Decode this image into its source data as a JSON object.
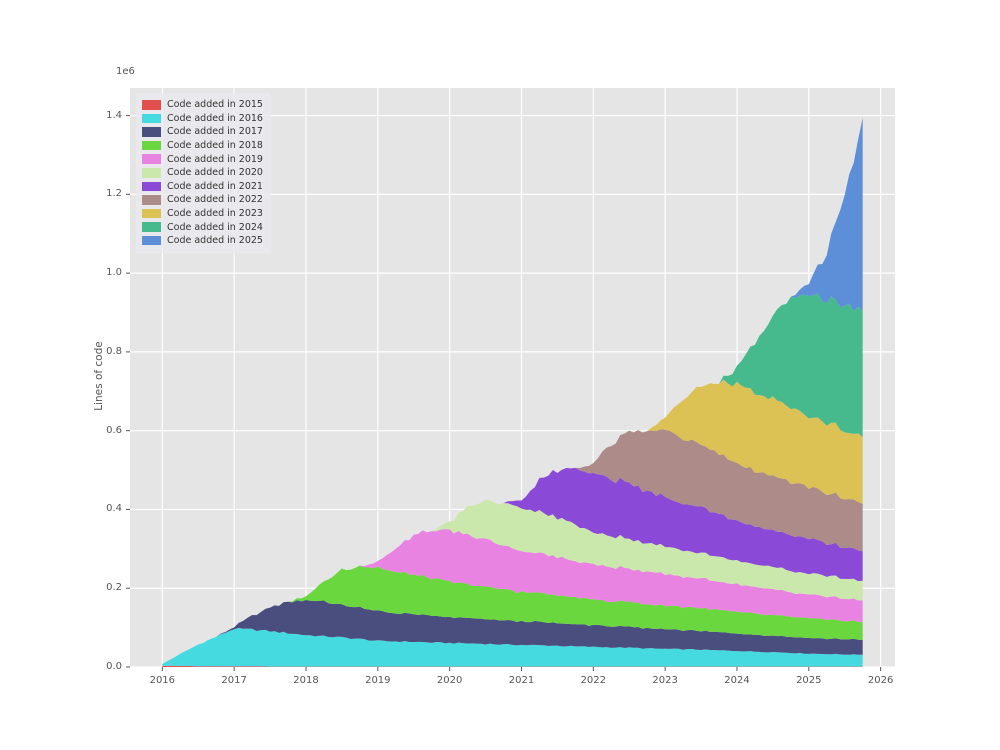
{
  "figure": {
    "background": "#ffffff",
    "axes_background": "#e5e5e5",
    "grid_color": "#ffffff",
    "tick_color": "#555555",
    "text_color": "#555555"
  },
  "chart_data": {
    "type": "area",
    "stacked": true,
    "title": "",
    "xlabel": "",
    "ylabel": "Lines of code",
    "y_offset_text": "1e6",
    "grid": true,
    "legend_position": "upper left",
    "xlim": [
      2015.55,
      2026.2
    ],
    "ylim": [
      0,
      1.47
    ],
    "xticks": [
      2016,
      2017,
      2018,
      2019,
      2020,
      2021,
      2022,
      2023,
      2024,
      2025,
      2026
    ],
    "yticks": [
      0.0,
      0.2,
      0.4,
      0.6,
      0.8,
      1.0,
      1.2,
      1.4
    ],
    "x": [
      2016.0,
      2016.25,
      2016.5,
      2016.75,
      2017.0,
      2017.25,
      2017.5,
      2017.75,
      2018.0,
      2018.25,
      2018.5,
      2018.75,
      2019.0,
      2019.25,
      2019.5,
      2019.75,
      2020.0,
      2020.25,
      2020.5,
      2020.75,
      2021.0,
      2021.25,
      2021.5,
      2021.75,
      2022.0,
      2022.25,
      2022.5,
      2022.75,
      2023.0,
      2023.25,
      2023.5,
      2023.75,
      2024.0,
      2024.25,
      2024.5,
      2024.75,
      2025.0,
      2025.25,
      2025.5,
      2025.75
    ],
    "series": [
      {
        "name": "Code added in 2015",
        "color": "#e34f4f",
        "values": [
          0.003,
          0.003,
          0.002,
          0.002,
          0.002,
          0.002,
          0.001,
          0.001,
          0.001,
          0.001,
          0.001,
          0.001,
          0.001,
          0.001,
          0.001,
          0.001,
          0.001,
          0.001,
          0.001,
          0.001,
          0.001,
          0.001,
          0.001,
          0.001,
          0.001,
          0.001,
          0.001,
          0.001,
          0.001,
          0.001,
          0.001,
          0.001,
          0.001,
          0.001,
          0.001,
          0.001,
          0.001,
          0.001,
          0.001,
          0.001
        ]
      },
      {
        "name": "Code added in 2016",
        "color": "#45d9e0",
        "values": [
          0.005,
          0.03,
          0.055,
          0.075,
          0.095,
          0.093,
          0.09,
          0.085,
          0.08,
          0.077,
          0.074,
          0.07,
          0.065,
          0.064,
          0.063,
          0.061,
          0.06,
          0.059,
          0.058,
          0.056,
          0.055,
          0.054,
          0.053,
          0.051,
          0.05,
          0.049,
          0.048,
          0.046,
          0.045,
          0.044,
          0.043,
          0.041,
          0.04,
          0.038,
          0.037,
          0.035,
          0.033,
          0.032,
          0.031,
          0.03
        ]
      },
      {
        "name": "Code added in 2017",
        "color": "#494e7e",
        "values": [
          0,
          0,
          0,
          0,
          0.005,
          0.035,
          0.06,
          0.08,
          0.09,
          0.087,
          0.083,
          0.079,
          0.075,
          0.072,
          0.07,
          0.067,
          0.065,
          0.064,
          0.062,
          0.061,
          0.06,
          0.059,
          0.057,
          0.056,
          0.055,
          0.054,
          0.052,
          0.051,
          0.05,
          0.049,
          0.047,
          0.046,
          0.045,
          0.043,
          0.042,
          0.041,
          0.04,
          0.039,
          0.039,
          0.038
        ]
      },
      {
        "name": "Code added in 2018",
        "color": "#6bd73e",
        "values": [
          0,
          0,
          0,
          0,
          0,
          0,
          0,
          0,
          0.01,
          0.05,
          0.09,
          0.105,
          0.11,
          0.105,
          0.1,
          0.095,
          0.09,
          0.085,
          0.082,
          0.079,
          0.075,
          0.073,
          0.071,
          0.068,
          0.065,
          0.064,
          0.063,
          0.061,
          0.06,
          0.059,
          0.058,
          0.056,
          0.055,
          0.054,
          0.052,
          0.051,
          0.05,
          0.048,
          0.047,
          0.045
        ]
      },
      {
        "name": "Code added in 2019",
        "color": "#e983e2",
        "values": [
          0,
          0,
          0,
          0,
          0,
          0,
          0,
          0,
          0,
          0,
          0,
          0,
          0.015,
          0.06,
          0.1,
          0.12,
          0.13,
          0.125,
          0.12,
          0.112,
          0.105,
          0.1,
          0.097,
          0.093,
          0.09,
          0.087,
          0.084,
          0.082,
          0.08,
          0.077,
          0.075,
          0.072,
          0.07,
          0.067,
          0.065,
          0.062,
          0.06,
          0.058,
          0.056,
          0.055
        ]
      },
      {
        "name": "Code added in 2020",
        "color": "#cbe8ac",
        "values": [
          0,
          0,
          0,
          0,
          0,
          0,
          0,
          0,
          0,
          0,
          0,
          0,
          0,
          0,
          0,
          0,
          0.02,
          0.07,
          0.1,
          0.105,
          0.11,
          0.105,
          0.1,
          0.095,
          0.08,
          0.078,
          0.076,
          0.073,
          0.07,
          0.068,
          0.065,
          0.063,
          0.06,
          0.058,
          0.057,
          0.055,
          0.053,
          0.052,
          0.051,
          0.05
        ]
      },
      {
        "name": "Code added in 2021",
        "color": "#8a49d6",
        "values": [
          0,
          0,
          0,
          0,
          0,
          0,
          0,
          0,
          0,
          0,
          0,
          0,
          0,
          0,
          0,
          0,
          0,
          0,
          0,
          0,
          0.02,
          0.08,
          0.12,
          0.14,
          0.15,
          0.145,
          0.14,
          0.132,
          0.125,
          0.12,
          0.115,
          0.11,
          0.1,
          0.097,
          0.094,
          0.091,
          0.088,
          0.083,
          0.079,
          0.075
        ]
      },
      {
        "name": "Code added in 2022",
        "color": "#ad8b89",
        "values": [
          0,
          0,
          0,
          0,
          0,
          0,
          0,
          0,
          0,
          0,
          0,
          0,
          0,
          0,
          0,
          0,
          0,
          0,
          0,
          0,
          0,
          0,
          0,
          0,
          0.025,
          0.09,
          0.13,
          0.155,
          0.17,
          0.165,
          0.16,
          0.152,
          0.145,
          0.142,
          0.138,
          0.134,
          0.13,
          0.127,
          0.124,
          0.12
        ]
      },
      {
        "name": "Code added in 2023",
        "color": "#dcc154",
        "values": [
          0,
          0,
          0,
          0,
          0,
          0,
          0,
          0,
          0,
          0,
          0,
          0,
          0,
          0,
          0,
          0,
          0,
          0,
          0,
          0,
          0,
          0,
          0,
          0,
          0,
          0,
          0,
          0,
          0.03,
          0.1,
          0.15,
          0.18,
          0.2,
          0.2,
          0.195,
          0.19,
          0.18,
          0.177,
          0.173,
          0.17
        ]
      },
      {
        "name": "Code added in 2024",
        "color": "#47ba8d",
        "values": [
          0,
          0,
          0,
          0,
          0,
          0,
          0,
          0,
          0,
          0,
          0,
          0,
          0,
          0,
          0,
          0,
          0,
          0,
          0,
          0,
          0,
          0,
          0,
          0,
          0,
          0,
          0,
          0,
          0,
          0,
          0,
          0,
          0.04,
          0.13,
          0.21,
          0.28,
          0.31,
          0.315,
          0.32,
          0.32
        ]
      },
      {
        "name": "Code added in 2025",
        "color": "#5d8fd8",
        "values": [
          0,
          0,
          0,
          0,
          0,
          0,
          0,
          0,
          0,
          0,
          0,
          0,
          0,
          0,
          0,
          0,
          0,
          0,
          0,
          0,
          0,
          0,
          0,
          0,
          0,
          0,
          0,
          0,
          0,
          0,
          0,
          0,
          0,
          0,
          0,
          0,
          0.03,
          0.12,
          0.28,
          0.49
        ]
      }
    ]
  }
}
